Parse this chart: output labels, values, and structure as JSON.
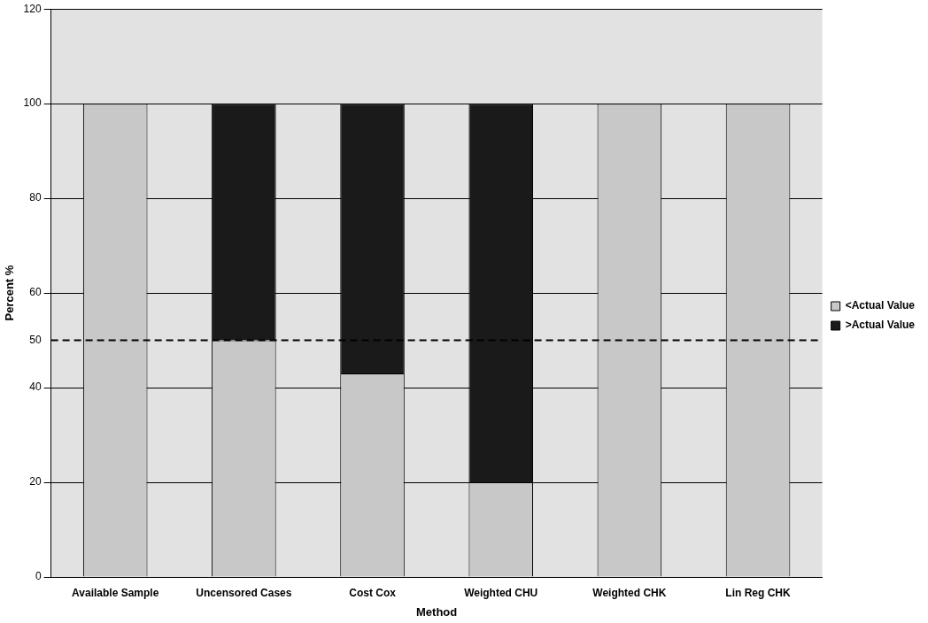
{
  "chart_data": {
    "type": "bar",
    "xlabel": "Method",
    "ylabel": "Percent %",
    "categories": [
      "Available Sample",
      "Uncensored Cases",
      "Cost Cox",
      "Weighted CHU",
      "Weighted CHK",
      "Lin Reg CHK"
    ],
    "stacked": true,
    "series": [
      {
        "name": "<Actual Value",
        "color": "#c8c8c8",
        "values": [
          100,
          50,
          43,
          20,
          100,
          100
        ]
      },
      {
        "name": ">Actual Value",
        "color": "#1a1a1a",
        "values": [
          0,
          50,
          57,
          80,
          0,
          0
        ]
      }
    ],
    "ylim": [
      0,
      120
    ],
    "yticks": [
      0,
      20,
      40,
      50,
      60,
      80,
      100,
      120
    ],
    "grid": "y",
    "legend": "right",
    "ref_lines": [
      {
        "axis": "y",
        "value": 50,
        "label": null,
        "line_style": "dashed",
        "color": "#000000"
      }
    ]
  }
}
